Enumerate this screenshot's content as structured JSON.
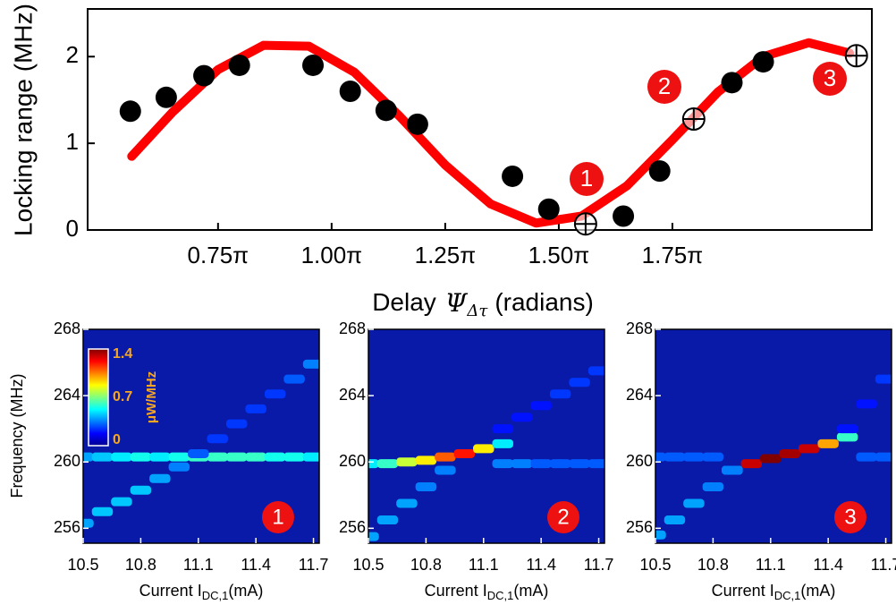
{
  "chart_data": [
    {
      "type": "line",
      "ylabel": "Locking range (MHz)",
      "xlabel": {
        "text": "Delay",
        "symbol": "Ψ",
        "subscript": "Δτ",
        "unit": "(radians)"
      },
      "xlim": [
        0.463,
        2.189
      ],
      "ylim": [
        0,
        2.55
      ],
      "xticks": [
        {
          "value": 0.75,
          "label": "0.75π"
        },
        {
          "value": 1.0,
          "label": "1.00π"
        },
        {
          "value": 1.25,
          "label": "1.25π"
        },
        {
          "value": 1.5,
          "label": "1.50π"
        },
        {
          "value": 1.75,
          "label": "1.75π"
        }
      ],
      "yticks": [
        0,
        1,
        2
      ],
      "series": [
        {
          "style": "line",
          "color": "#ff0000",
          "x": [
            0.56,
            0.65,
            0.75,
            0.85,
            0.95,
            1.05,
            1.15,
            1.25,
            1.35,
            1.45,
            1.55,
            1.65,
            1.75,
            1.85,
            1.95,
            2.05,
            2.14
          ],
          "values": [
            0.85,
            1.36,
            1.85,
            2.13,
            2.12,
            1.82,
            1.31,
            0.75,
            0.3,
            0.08,
            0.16,
            0.51,
            1.04,
            1.59,
            2.0,
            2.16,
            2.04
          ]
        },
        {
          "style": "dot",
          "color": "#000000",
          "x": [
            0.557,
            0.636,
            0.719,
            0.797,
            0.959,
            1.041,
            1.12,
            1.189,
            1.398,
            1.478,
            1.642,
            1.722,
            1.881,
            1.95
          ],
          "values": [
            1.37,
            1.53,
            1.78,
            1.9,
            1.9,
            1.6,
            1.38,
            1.22,
            0.62,
            0.24,
            0.16,
            0.68,
            1.7,
            1.94
          ]
        },
        {
          "style": "crossed-circle",
          "color": "#000000",
          "x": [
            1.559,
            1.797,
            2.155
          ],
          "values": [
            0.07,
            1.28,
            2.01
          ]
        }
      ],
      "annotations": [
        "1",
        "2",
        "3"
      ]
    },
    {
      "type": "heatmap",
      "ylabel": "Frequency (MHz)",
      "xlabel": {
        "text": "Current I",
        "subscript": "DC,1",
        "unit": "(mA)"
      },
      "xlim": [
        10.5,
        11.73
      ],
      "ylim": [
        255.1,
        268
      ],
      "xticks": [
        10.5,
        10.8,
        11.1,
        11.4,
        11.7
      ],
      "yticks": [
        256,
        260,
        264,
        268
      ],
      "colorbar": {
        "lim": [
          0,
          1.4
        ],
        "ticks": [
          1.4,
          0.7,
          0
        ],
        "label": "μW/MHz"
      },
      "panels": [
        {
          "label": "1",
          "traces": [
            {
              "x": [
                10.5,
                10.6,
                10.7,
                10.8,
                10.9,
                11.0,
                11.1,
                11.2,
                11.3,
                11.4,
                11.5,
                11.6,
                11.7
              ],
              "freq": [
                260.3,
                260.3,
                260.3,
                260.3,
                260.3,
                260.3,
                260.3,
                260.3,
                260.3,
                260.3,
                260.3,
                260.3,
                260.3
              ],
              "intensity": [
                0.4,
                0.45,
                0.5,
                0.55,
                0.5,
                0.55,
                0.6,
                0.6,
                0.6,
                0.6,
                0.55,
                0.55,
                0.5
              ]
            },
            {
              "x": [
                10.5,
                10.6,
                10.7,
                10.8,
                10.9,
                11.0,
                11.1,
                11.2,
                11.3,
                11.4,
                11.5,
                11.6,
                11.7
              ],
              "freq": [
                256.3,
                257.0,
                257.6,
                258.3,
                259.0,
                259.7,
                260.5,
                261.4,
                262.3,
                263.2,
                264.1,
                265.0,
                265.9
              ],
              "intensity": [
                0.4,
                0.45,
                0.45,
                0.45,
                0.4,
                0.35,
                0.3,
                0.25,
                0.25,
                0.25,
                0.25,
                0.3,
                0.35
              ]
            }
          ]
        },
        {
          "label": "2",
          "traces": [
            {
              "x": [
                10.5,
                10.6,
                10.7,
                10.8,
                10.9,
                11.0,
                11.1,
                11.2
              ],
              "freq": [
                259.9,
                259.9,
                260.0,
                260.1,
                260.3,
                260.5,
                260.8,
                261.1
              ],
              "intensity": [
                0.5,
                0.6,
                0.8,
                0.9,
                1.1,
                1.2,
                0.9,
                0.5
              ]
            },
            {
              "x": [
                11.2,
                11.3,
                11.4,
                11.5,
                11.6,
                11.7
              ],
              "freq": [
                259.9,
                259.9,
                259.9,
                259.9,
                259.9,
                259.9
              ],
              "intensity": [
                0.35,
                0.35,
                0.3,
                0.3,
                0.3,
                0.3
              ]
            },
            {
              "x": [
                10.5,
                10.6,
                10.7,
                10.8,
                10.9
              ],
              "freq": [
                255.5,
                256.5,
                257.5,
                258.5,
                259.5
              ],
              "intensity": [
                0.4,
                0.4,
                0.4,
                0.35,
                0.35
              ]
            },
            {
              "x": [
                11.2,
                11.3,
                11.4,
                11.5,
                11.6,
                11.7
              ],
              "freq": [
                262.0,
                262.7,
                263.4,
                264.1,
                264.8,
                265.5
              ],
              "intensity": [
                0.2,
                0.2,
                0.2,
                0.25,
                0.25,
                0.25
              ]
            }
          ]
        },
        {
          "label": "3",
          "traces": [
            {
              "x": [
                10.9,
                11.0,
                11.1,
                11.2,
                11.3,
                11.4,
                11.5
              ],
              "freq": [
                259.5,
                259.9,
                260.2,
                260.5,
                260.8,
                261.1,
                261.5
              ],
              "intensity": [
                0.5,
                1.3,
                1.4,
                1.35,
                1.3,
                1.0,
                0.6
              ]
            },
            {
              "x": [
                10.5,
                10.6,
                10.7,
                10.8,
                11.6,
                11.7
              ],
              "freq": [
                260.3,
                260.3,
                260.3,
                260.3,
                260.3,
                260.3
              ],
              "intensity": [
                0.3,
                0.3,
                0.3,
                0.3,
                0.3,
                0.3
              ]
            },
            {
              "x": [
                10.5,
                10.6,
                10.7,
                10.8,
                10.9
              ],
              "freq": [
                255.6,
                256.5,
                257.5,
                258.5,
                259.5
              ],
              "intensity": [
                0.4,
                0.4,
                0.4,
                0.35,
                0.35
              ]
            },
            {
              "x": [
                11.5,
                11.6,
                11.7
              ],
              "freq": [
                262.0,
                263.5,
                265.0
              ],
              "intensity": [
                0.2,
                0.2,
                0.25
              ]
            }
          ]
        }
      ]
    }
  ]
}
